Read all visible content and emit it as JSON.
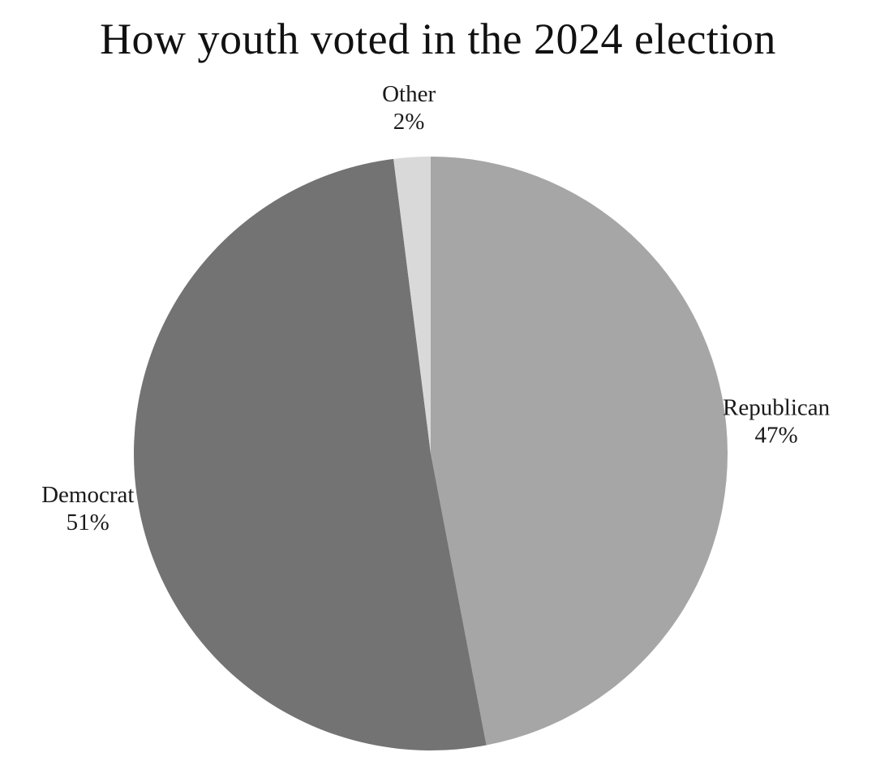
{
  "chart_data": {
    "type": "pie",
    "title": "How youth voted in the 2024 election",
    "start_angle_deg": 0,
    "direction": "clockwise",
    "slices": [
      {
        "label": "Republican",
        "value": 47,
        "value_label": "47%",
        "color": "#a6a6a6"
      },
      {
        "label": "Democrat",
        "value": 51,
        "value_label": "51%",
        "color": "#737373"
      },
      {
        "label": "Other",
        "value": 2,
        "value_label": "2%",
        "color": "#d9d9d9"
      }
    ]
  }
}
